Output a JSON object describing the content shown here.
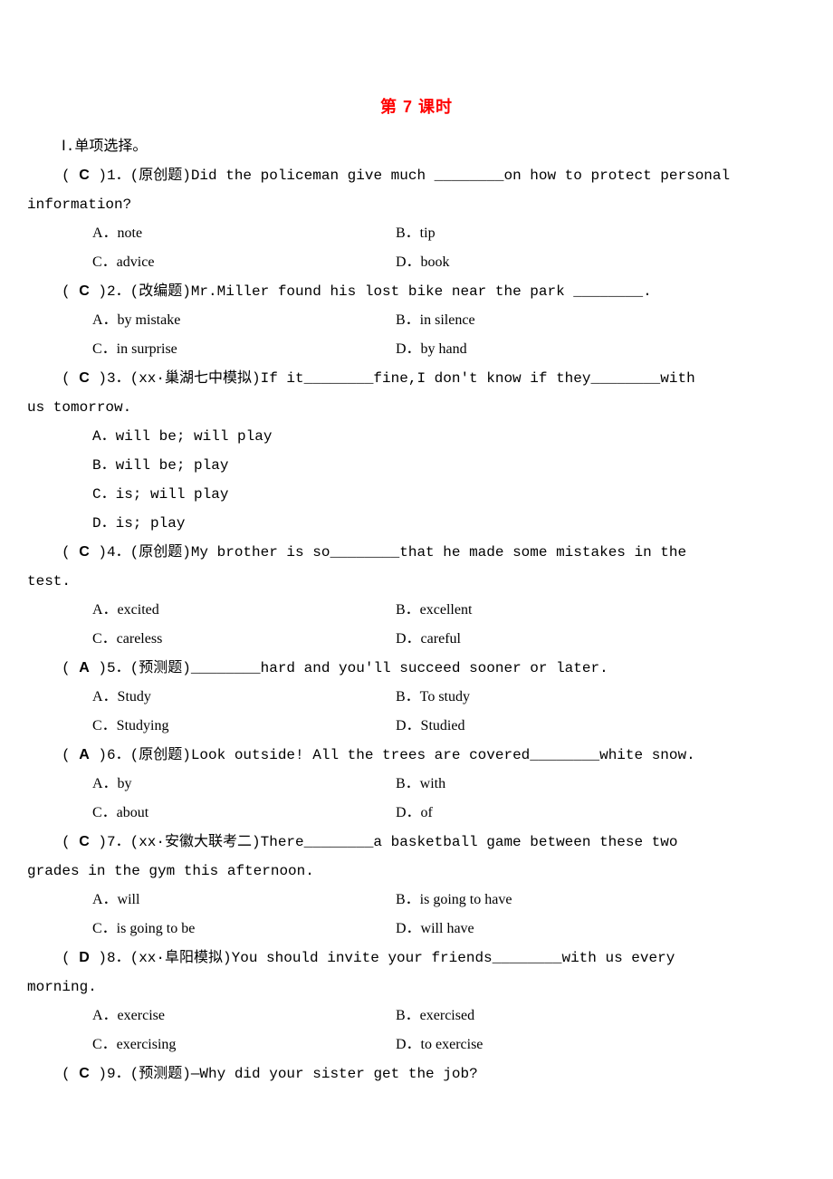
{
  "title": "第 7 课时",
  "section_header": "Ⅰ.单项选择。",
  "blank6": "______",
  "blank7": "_______",
  "blank8": "________",
  "questions": [
    {
      "num": "1",
      "ans": "C",
      "tag": "(原创题)",
      "stem_l1": "Did the policeman give much ________on how to protect personal",
      "stem_l2": "information?",
      "opts": [
        [
          "A．note",
          "B．tip"
        ],
        [
          "C．advice",
          "D．book"
        ]
      ]
    },
    {
      "num": "2",
      "ans": "C",
      "tag": "(改编题)",
      "stem_l1": "Mr.Miller found his lost bike near the park ________.",
      "opts": [
        [
          "A．by mistake",
          "B．in silence"
        ],
        [
          "C．in surprise",
          "D．by hand"
        ]
      ]
    },
    {
      "num": "3",
      "ans": "C",
      "tag": "(xx·巢湖七中模拟)",
      "stem_l1": "If it________fine,I don't know if they________with",
      "stem_l2": "us tomorrow.",
      "single_opts": [
        "A．will be; will play",
        "B．will be; play",
        "C．is; will play",
        "D．is; play"
      ]
    },
    {
      "num": "4",
      "ans": "C",
      "tag": "(原创题)",
      "stem_l1": "My brother is so________that he made some mistakes in the",
      "stem_l2": "test.",
      "opts": [
        [
          "A．excited",
          "B．excellent"
        ],
        [
          "C．careless",
          "D．careful"
        ]
      ]
    },
    {
      "num": "5",
      "ans": "A",
      "tag": "(预测题)",
      "stem_l1": "________hard and you'll succeed sooner or later.",
      "opts": [
        [
          "A．Study",
          "B．To study"
        ],
        [
          "C．Studying",
          "D．Studied"
        ]
      ]
    },
    {
      "num": "6",
      "ans": "A",
      "tag": "(原创题)",
      "stem_l1": "Look outside! All the trees are covered________white snow.",
      "opts": [
        [
          "A．by",
          "B．with"
        ],
        [
          "C．about",
          "D．of"
        ]
      ]
    },
    {
      "num": "7",
      "ans": "C",
      "tag": "(xx·安徽大联考二)",
      "stem_l1": "There________a basketball game between these two",
      "stem_l2": "grades in the gym this afternoon.",
      "opts": [
        [
          "A．will",
          "B．is going to have"
        ],
        [
          "C．is going to be",
          "D．will have"
        ]
      ]
    },
    {
      "num": "8",
      "ans": "D",
      "tag": "(xx·阜阳模拟)",
      "stem_l1": "You should invite your friends________with us every",
      "stem_l2": "morning.",
      "opts": [
        [
          "A．exercise",
          "B．exercised"
        ],
        [
          "C．exercising",
          "D．to exercise"
        ]
      ]
    },
    {
      "num": "9",
      "ans": "C",
      "tag": "(预测题)",
      "stem_l1": "—Why did your sister get the job?"
    }
  ]
}
